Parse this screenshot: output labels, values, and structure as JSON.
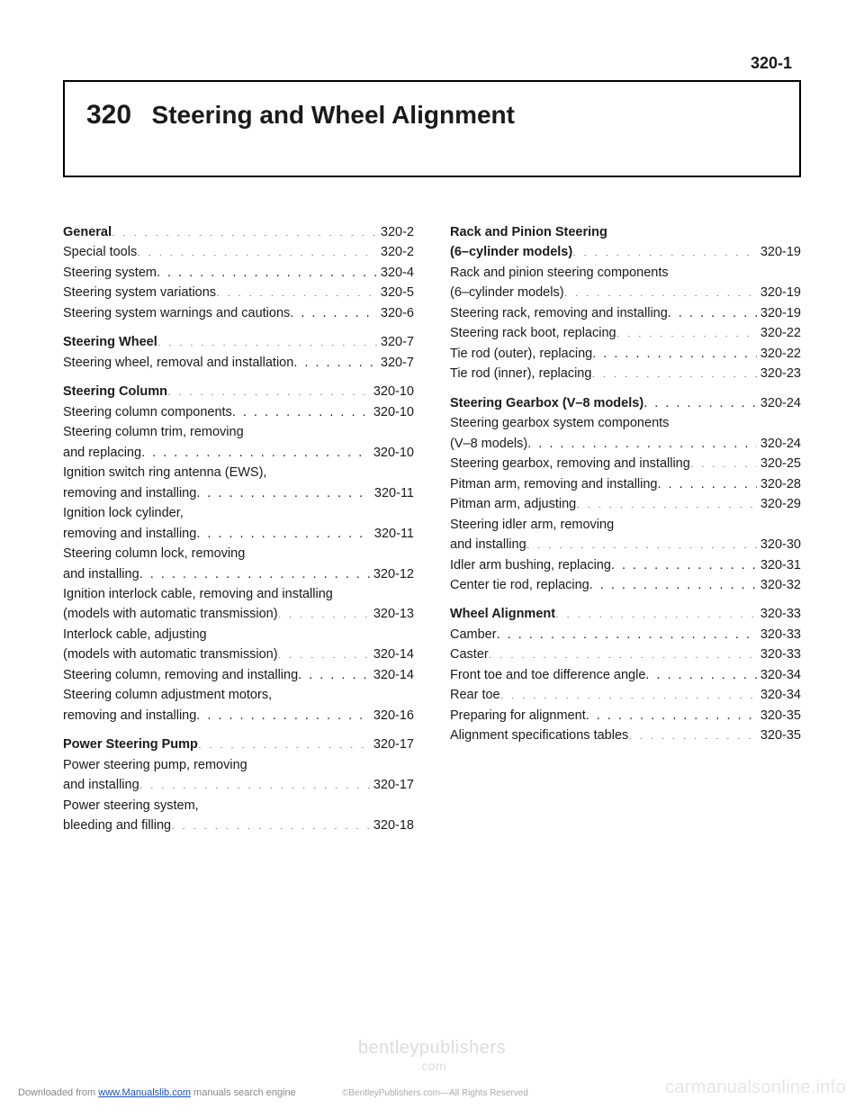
{
  "page_number_header": "320-1",
  "chapter_number": "320",
  "chapter_title": "Steering and Wheel Alignment",
  "watermark_main": "bentleypublishers",
  "watermark_sub": ".com",
  "footer_download_prefix": "Downloaded from ",
  "footer_download_link": "www.Manualslib.com",
  "footer_download_suffix": " manuals search engine",
  "footer_copyright": "©BentleyPublishers.com—All Rights Reserved",
  "footer_brand": "carmanualsonline.info",
  "left_column": [
    {
      "type": "section",
      "label": "General",
      "page": "320-2"
    },
    {
      "type": "entry",
      "label": "Special tools",
      "page": "320-2"
    },
    {
      "type": "entry",
      "label": "Steering system",
      "page": "320-4"
    },
    {
      "type": "entry",
      "label": "Steering system variations",
      "page": "320-5"
    },
    {
      "type": "entry",
      "label": "Steering system warnings and cautions",
      "page": "320-6"
    },
    {
      "type": "gap"
    },
    {
      "type": "section",
      "label": "Steering Wheel",
      "page": "320-7"
    },
    {
      "type": "entry",
      "label": "Steering wheel, removal and installation",
      "page": "320-7"
    },
    {
      "type": "gap"
    },
    {
      "type": "section",
      "label": "Steering Column",
      "page": "320-10"
    },
    {
      "type": "entry",
      "label": "Steering column components",
      "page": "320-10"
    },
    {
      "type": "wrap",
      "line1": "Steering column trim, removing",
      "line2": "and replacing",
      "page": "320-10"
    },
    {
      "type": "wrap",
      "line1": "Ignition switch ring antenna (EWS),",
      "line2": "removing and installing",
      "page": "320-11"
    },
    {
      "type": "wrap",
      "line1": "Ignition lock cylinder,",
      "line2": "removing and installing",
      "page": "320-11"
    },
    {
      "type": "wrap",
      "line1": "Steering column lock, removing",
      "line2": "and installing",
      "page": "320-12"
    },
    {
      "type": "wrap",
      "line1": "Ignition interlock cable, removing and installing",
      "line2": "(models with automatic transmission)",
      "page": "320-13"
    },
    {
      "type": "wrap",
      "line1": "Interlock cable, adjusting",
      "line2": "(models with automatic transmission)",
      "page": "320-14"
    },
    {
      "type": "entry",
      "label": "Steering column, removing and installing",
      "page": "320-14"
    },
    {
      "type": "wrap",
      "line1": "Steering column adjustment motors,",
      "line2": "removing and installing",
      "page": "320-16"
    },
    {
      "type": "gap"
    },
    {
      "type": "section",
      "label": "Power Steering Pump",
      "page": "320-17"
    },
    {
      "type": "wrap",
      "line1": "Power steering pump, removing",
      "line2": "and installing",
      "page": "320-17"
    },
    {
      "type": "wrap",
      "line1": "Power steering system,",
      "line2": "bleeding and filling",
      "page": "320-18"
    }
  ],
  "right_column": [
    {
      "type": "section_wrap",
      "line1": "Rack and Pinion Steering",
      "line2": "(6–cylinder models)",
      "page": "320-19"
    },
    {
      "type": "wrap",
      "line1": "Rack and pinion steering components",
      "line2": "(6–cylinder models)",
      "page": "320-19"
    },
    {
      "type": "entry",
      "label": "Steering rack, removing and installing",
      "page": "320-19"
    },
    {
      "type": "entry",
      "label": "Steering rack boot, replacing",
      "page": "320-22"
    },
    {
      "type": "entry",
      "label": "Tie rod (outer), replacing",
      "page": "320-22"
    },
    {
      "type": "entry",
      "label": "Tie rod (inner), replacing",
      "page": "320-23"
    },
    {
      "type": "gap"
    },
    {
      "type": "section",
      "label": "Steering Gearbox (V–8 models)",
      "page": "320-24"
    },
    {
      "type": "wrap",
      "line1": "Steering gearbox system components",
      "line2": "(V–8 models)",
      "page": "320-24"
    },
    {
      "type": "entry",
      "label": "Steering gearbox, removing and installing",
      "page": "320-25"
    },
    {
      "type": "entry",
      "label": "Pitman arm, removing and installing",
      "page": "320-28"
    },
    {
      "type": "entry",
      "label": "Pitman arm, adjusting",
      "page": "320-29"
    },
    {
      "type": "wrap",
      "line1": "Steering idler arm, removing",
      "line2": "and installing",
      "page": "320-30"
    },
    {
      "type": "entry",
      "label": "Idler arm bushing, replacing",
      "page": "320-31"
    },
    {
      "type": "entry",
      "label": "Center tie rod, replacing",
      "page": "320-32"
    },
    {
      "type": "gap"
    },
    {
      "type": "section",
      "label": "Wheel Alignment",
      "page": "320-33"
    },
    {
      "type": "entry",
      "label": "Camber",
      "page": "320-33"
    },
    {
      "type": "entry",
      "label": "Caster",
      "page": "320-33"
    },
    {
      "type": "entry",
      "label": "Front toe and toe difference angle",
      "page": "320-34"
    },
    {
      "type": "entry",
      "label": "Rear toe",
      "page": "320-34"
    },
    {
      "type": "entry",
      "label": "Preparing for alignment",
      "page": "320-35"
    },
    {
      "type": "entry",
      "label": "Alignment specifications tables",
      "page": "320-35"
    }
  ]
}
